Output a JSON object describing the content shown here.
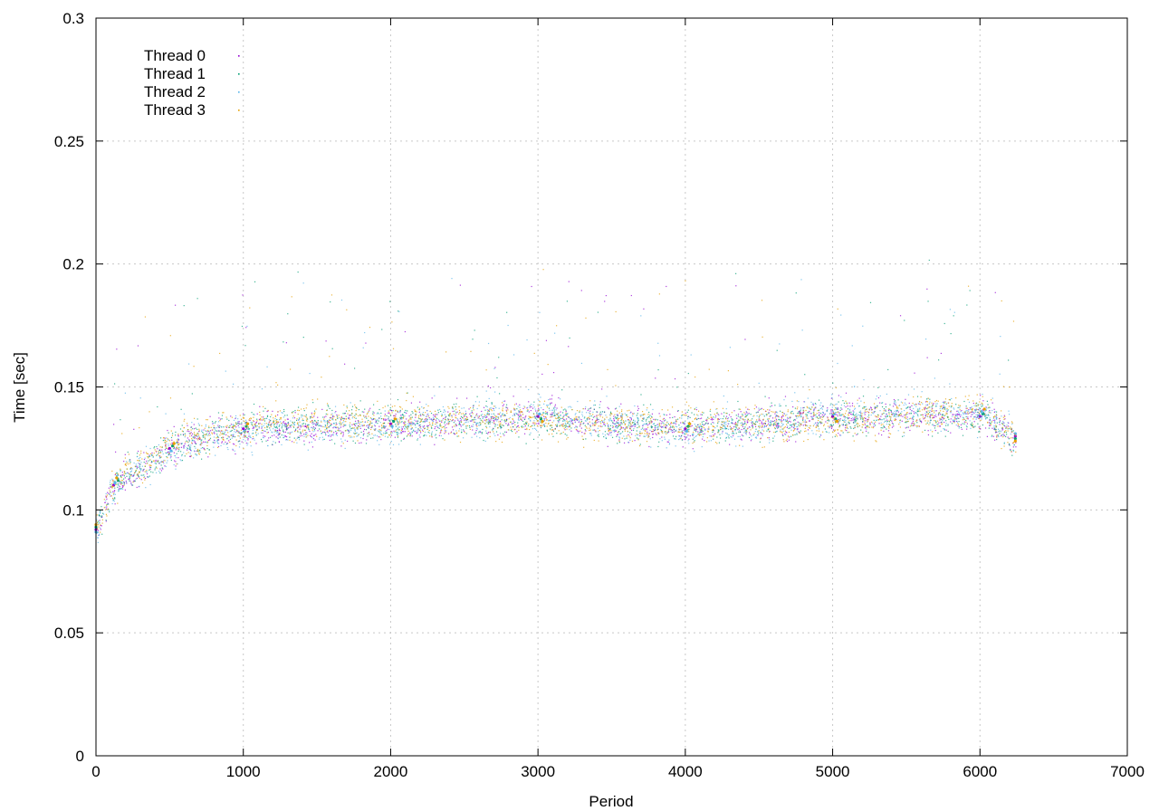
{
  "chart_data": {
    "type": "scatter",
    "xlabel": "Period",
    "ylabel": "Time [sec]",
    "xlim": [
      0,
      7000
    ],
    "ylim": [
      0,
      0.3
    ],
    "x_ticks": [
      "0",
      "1000",
      "2000",
      "3000",
      "4000",
      "5000",
      "6000",
      "7000"
    ],
    "y_ticks": [
      "0",
      "0.05",
      "0.1",
      "0.15",
      "0.2",
      "0.25",
      "0.3"
    ],
    "grid": true,
    "legend_position": "top-left",
    "series": [
      {
        "name": "Thread 0",
        "color": "#9400d3",
        "points": [
          [
            0,
            0.092
          ],
          [
            120,
            0.11
          ],
          [
            500,
            0.125
          ],
          [
            1000,
            0.133
          ],
          [
            2000,
            0.135
          ],
          [
            3000,
            0.138
          ],
          [
            4000,
            0.133
          ],
          [
            5000,
            0.138
          ],
          [
            6000,
            0.138
          ],
          [
            6240,
            0.13
          ]
        ]
      },
      {
        "name": "Thread 1",
        "color": "#009e73",
        "points": [
          [
            0,
            0.093
          ],
          [
            150,
            0.112
          ],
          [
            520,
            0.126
          ],
          [
            1020,
            0.134
          ],
          [
            2020,
            0.136
          ],
          [
            3020,
            0.137
          ],
          [
            4020,
            0.134
          ],
          [
            5020,
            0.137
          ],
          [
            6020,
            0.139
          ],
          [
            6240,
            0.129
          ]
        ]
      },
      {
        "name": "Thread 2",
        "color": "#56b4e9",
        "points": [
          [
            0,
            0.091
          ],
          [
            130,
            0.111
          ],
          [
            510,
            0.124
          ],
          [
            1010,
            0.132
          ],
          [
            2010,
            0.134
          ],
          [
            3010,
            0.139
          ],
          [
            4010,
            0.132
          ],
          [
            5010,
            0.139
          ],
          [
            6010,
            0.14
          ],
          [
            6240,
            0.131
          ]
        ]
      },
      {
        "name": "Thread 3",
        "color": "#e69f00",
        "points": [
          [
            0,
            0.094
          ],
          [
            140,
            0.113
          ],
          [
            530,
            0.127
          ],
          [
            1030,
            0.135
          ],
          [
            2030,
            0.137
          ],
          [
            3030,
            0.136
          ],
          [
            4030,
            0.135
          ],
          [
            5030,
            0.136
          ],
          [
            6030,
            0.141
          ],
          [
            6240,
            0.128
          ]
        ]
      }
    ]
  }
}
